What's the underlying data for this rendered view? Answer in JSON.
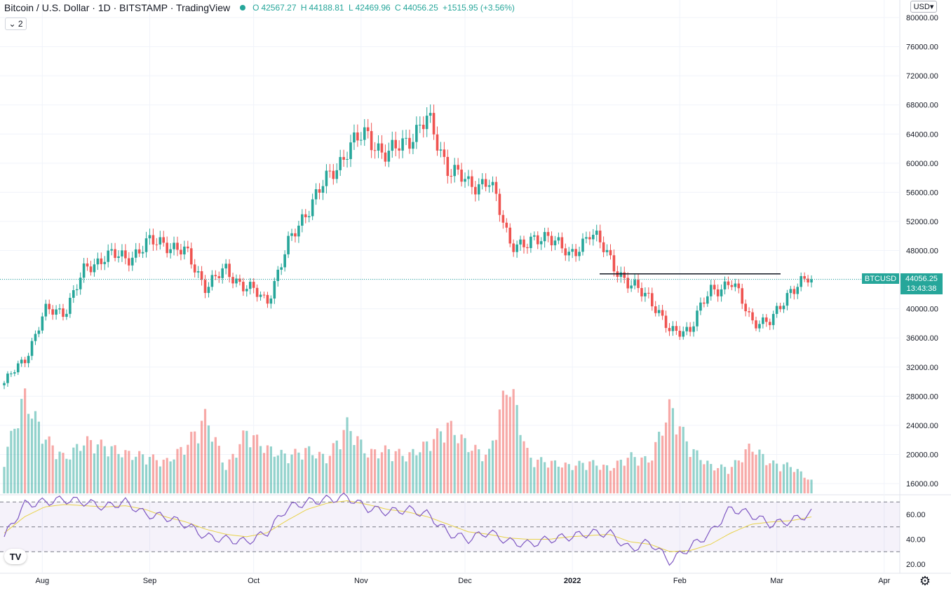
{
  "header": {
    "symbol_title": "Bitcoin / U.S. Dollar · 1D · BITSTAMP · TradingView",
    "open_key": "O",
    "open": "42567.27",
    "high_key": "H",
    "high": "44188.81",
    "low_key": "L",
    "low": "42469.96",
    "close_key": "C",
    "close": "44056.25",
    "change": "+1515.95 (+3.56%)",
    "indicator_toggle": "⌄ 2"
  },
  "toolbar": {
    "currency_select": "USD",
    "logo": "TV",
    "settings_icon": "gear-icon"
  },
  "price_label": {
    "symbol": "BTCUSD",
    "price": "44056.25",
    "countdown": "13:43:38"
  },
  "colors": {
    "up": "#26a69a",
    "down": "#ef5350",
    "rsi": "#7e57c2",
    "rsi_ma": "#e8d24a",
    "rsi_band": "#7e57c2"
  },
  "chart_data": [
    {
      "type": "candlestick",
      "title": "Bitcoin / U.S. Dollar · 1D · BITSTAMP",
      "x_start": "2021-07-21",
      "x_end": "2022-03-11",
      "ylim": [
        14800,
        81000
      ],
      "y_ticks": [
        "80000.00",
        "76000.00",
        "72000.00",
        "68000.00",
        "64000.00",
        "60000.00",
        "56000.00",
        "52000.00",
        "48000.00",
        "44000.00",
        "40000.00",
        "36000.00",
        "32000.00",
        "28000.00",
        "24000.00",
        "20000.00",
        "16000.00"
      ],
      "x_ticks": [
        "Aug",
        "Sep",
        "Oct",
        "Nov",
        "Dec",
        "2022",
        "Feb",
        "Mar",
        "Apr"
      ],
      "horizontal_line": 44800,
      "last_price": 44056.25,
      "closes_weekly": [
        29800,
        33000,
        39500,
        39800,
        45200,
        47500,
        46800,
        48800,
        49200,
        47500,
        43200,
        45200,
        43000,
        41000,
        48200,
        53800,
        57600,
        62000,
        64000,
        60800,
        63500,
        65800,
        59500,
        56900,
        57800,
        49500,
        48500,
        50600,
        46800,
        50700,
        47000,
        43000,
        41800,
        36500,
        37500,
        42400,
        43800,
        38600,
        38000,
        43000,
        44056
      ]
    },
    {
      "type": "bar",
      "title": "Volume",
      "note": "volume histogram, relative height",
      "values_weekly": [
        0.28,
        0.78,
        0.45,
        0.28,
        0.42,
        0.38,
        0.32,
        0.3,
        0.25,
        0.38,
        0.62,
        0.2,
        0.5,
        0.36,
        0.3,
        0.35,
        0.28,
        0.55,
        0.32,
        0.35,
        0.3,
        0.4,
        0.55,
        0.38,
        0.3,
        0.92,
        0.28,
        0.25,
        0.22,
        0.25,
        0.2,
        0.3,
        0.26,
        0.7,
        0.36,
        0.22,
        0.2,
        0.38,
        0.24,
        0.22,
        0.1
      ]
    },
    {
      "type": "line",
      "title": "RSI",
      "y_ticks": [
        "60.00",
        "40.00",
        "20.00"
      ],
      "bands": [
        70,
        50,
        30
      ],
      "ylim": [
        16,
        77
      ],
      "rsi_weekly": [
        42,
        68,
        70,
        72,
        70,
        66,
        70,
        60,
        58,
        52,
        42,
        40,
        38,
        45,
        65,
        70,
        72,
        74,
        65,
        62,
        64,
        60,
        45,
        40,
        46,
        38,
        36,
        40,
        42,
        45,
        45,
        32,
        38,
        22,
        34,
        45,
        65,
        60,
        52,
        55,
        61
      ],
      "ma_weekly": [
        45,
        58,
        66,
        68,
        67,
        66,
        67,
        64,
        58,
        54,
        48,
        44,
        42,
        45,
        55,
        64,
        69,
        71,
        68,
        64,
        62,
        58,
        52,
        46,
        44,
        41,
        40,
        40,
        42,
        43,
        44,
        38,
        36,
        30,
        31,
        36,
        45,
        52,
        54,
        55,
        58
      ]
    }
  ]
}
